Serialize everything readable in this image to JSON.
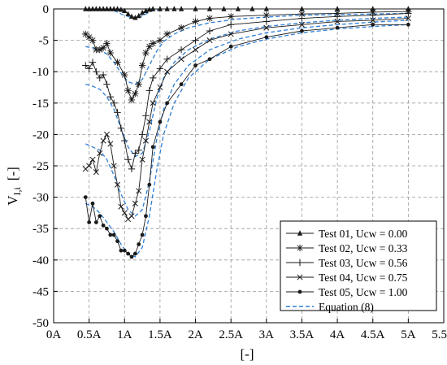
{
  "chart_data": {
    "type": "line",
    "xlabel": "[-]",
    "ylabel": "V",
    "ylabel_sub": "I,i",
    "ylabel_suffix": "[-]",
    "xlim": [
      0,
      5.5
    ],
    "ylim": [
      -50,
      0
    ],
    "x_ticks": [
      0,
      0.5,
      1,
      1.5,
      2,
      2.5,
      3,
      3.5,
      4,
      4.5,
      5,
      5.5
    ],
    "x_tick_labels": [
      "0A",
      "0.5A",
      "1A",
      "1.5A",
      "2A",
      "2.5A",
      "3A",
      "3.5A",
      "4A",
      "4.5A",
      "5A",
      "5.5A"
    ],
    "y_ticks": [
      0,
      -5,
      -10,
      -15,
      -20,
      -25,
      -30,
      -35,
      -40,
      -45,
      -50
    ],
    "y_tick_labels": [
      "0",
      "-5",
      "-10",
      "-15",
      "-20",
      "-25",
      "-30",
      "-35",
      "-40",
      "-45",
      "-50"
    ],
    "grid": true,
    "legend_position": "bottom-right",
    "series": [
      {
        "name": "Test 01, Ucw = 0.00",
        "marker": "triangle",
        "x": [
          0.45,
          0.5,
          0.55,
          0.6,
          0.65,
          0.7,
          0.75,
          0.8,
          0.85,
          0.9,
          0.95,
          1.0,
          1.05,
          1.1,
          1.15,
          1.2,
          1.25,
          1.3,
          1.35,
          1.4,
          1.5,
          1.6,
          1.7,
          1.8,
          2.0,
          2.2,
          2.4,
          2.6,
          2.8,
          3.0,
          3.5,
          4.0,
          4.5,
          5.0
        ],
        "y": [
          0,
          0,
          0,
          0,
          0,
          0,
          0,
          0,
          0,
          0,
          -0.1,
          -0.3,
          -0.8,
          -1.2,
          -1.4,
          -1.1,
          -0.6,
          -0.3,
          -0.1,
          0,
          0,
          0,
          0,
          0,
          0,
          0,
          0,
          0,
          0,
          0,
          0,
          0,
          0,
          0
        ]
      },
      {
        "name": "Test 02, Ucw = 0.33",
        "marker": "star",
        "x": [
          0.45,
          0.5,
          0.55,
          0.6,
          0.65,
          0.7,
          0.75,
          0.8,
          0.9,
          1.0,
          1.05,
          1.1,
          1.15,
          1.2,
          1.25,
          1.3,
          1.35,
          1.4,
          1.5,
          1.6,
          1.8,
          2.0,
          2.2,
          2.5,
          3.0,
          3.5,
          4.0,
          4.5,
          5.0
        ],
        "y": [
          -4,
          -4.5,
          -5,
          -6.5,
          -6.5,
          -6.2,
          -5.5,
          -7,
          -8.5,
          -10.5,
          -13,
          -14.5,
          -13.5,
          -12,
          -9,
          -7,
          -6,
          -5.5,
          -5,
          -4,
          -3,
          -2,
          -1.5,
          -1.2,
          -1.0,
          -0.8,
          -0.7,
          -0.5,
          -0.4
        ]
      },
      {
        "name": "Test 03, Ucw = 0.56",
        "marker": "plus",
        "x": [
          0.45,
          0.5,
          0.55,
          0.6,
          0.65,
          0.7,
          0.75,
          0.8,
          0.85,
          0.9,
          0.95,
          1.0,
          1.05,
          1.1,
          1.15,
          1.2,
          1.25,
          1.3,
          1.35,
          1.4,
          1.5,
          1.6,
          1.8,
          2.0,
          2.2,
          2.5,
          3.0,
          3.5,
          4.0,
          4.5,
          5.0
        ],
        "y": [
          -9,
          -9.5,
          -8.5,
          -10,
          -11,
          -10.5,
          -12,
          -14,
          -15,
          -16.5,
          -19,
          -21,
          -24,
          -25.5,
          -23,
          -22.5,
          -20,
          -17,
          -13,
          -11,
          -9.5,
          -8,
          -6.5,
          -5,
          -3.5,
          -2.5,
          -2,
          -1.5,
          -1.2,
          -1.0,
          -0.7
        ]
      },
      {
        "name": "Test 04, Ucw = 0.75",
        "marker": "x",
        "x": [
          0.45,
          0.5,
          0.55,
          0.6,
          0.65,
          0.7,
          0.75,
          0.8,
          0.85,
          0.9,
          0.95,
          1.0,
          1.05,
          1.1,
          1.15,
          1.2,
          1.25,
          1.3,
          1.35,
          1.4,
          1.5,
          1.6,
          1.8,
          2.0,
          2.2,
          2.5,
          3.0,
          3.5,
          4.0,
          4.5,
          5.0
        ],
        "y": [
          -25.5,
          -25,
          -24,
          -26,
          -23,
          -21,
          -20,
          -21.5,
          -25,
          -28,
          -31.5,
          -32.5,
          -33.5,
          -33,
          -31,
          -29,
          -24,
          -21,
          -18,
          -15,
          -12.5,
          -10,
          -8,
          -6.5,
          -5,
          -4,
          -3,
          -2.5,
          -2,
          -1.8,
          -1.5
        ]
      },
      {
        "name": "Test 05, Ucw = 1.00",
        "marker": "dot",
        "x": [
          0.45,
          0.5,
          0.55,
          0.6,
          0.65,
          0.7,
          0.75,
          0.8,
          0.85,
          0.9,
          0.95,
          1.0,
          1.05,
          1.1,
          1.15,
          1.2,
          1.25,
          1.3,
          1.35,
          1.4,
          1.5,
          1.6,
          1.8,
          2.0,
          2.2,
          2.5,
          3.0,
          3.5,
          4.0,
          4.5,
          5.0
        ],
        "y": [
          -30,
          -34,
          -31,
          -34,
          -33,
          -34.5,
          -35,
          -36,
          -36,
          -37,
          -38.5,
          -38.5,
          -39,
          -39.5,
          -39,
          -37.5,
          -36,
          -33,
          -28,
          -22,
          -18,
          -15,
          -12,
          -9,
          -8,
          -6,
          -4.5,
          -3.5,
          -3,
          -2.5,
          -2.5
        ]
      }
    ],
    "equation": {
      "name": "Equation (8)",
      "style": "dashed",
      "color": "#2F7FD4",
      "curves": [
        {
          "x": [
            0.85,
            0.9,
            0.95,
            1.0,
            1.05,
            1.1,
            1.15,
            1.2,
            1.25,
            1.3,
            1.35,
            1.4,
            1.5
          ],
          "y": [
            -0.3,
            -0.5,
            -0.8,
            -1.0,
            -1.2,
            -1.35,
            -1.4,
            -1.3,
            -1.1,
            -0.8,
            -0.5,
            -0.3,
            -0.1
          ]
        },
        {
          "x": [
            0.45,
            0.55,
            0.65,
            0.75,
            0.85,
            0.95,
            1.05,
            1.15,
            1.25,
            1.35,
            1.45,
            1.55,
            1.7,
            1.9,
            2.2,
            2.6,
            3.0,
            3.5,
            4.0,
            4.5,
            5.0
          ],
          "y": [
            -6,
            -6.2,
            -6.5,
            -7.2,
            -8.5,
            -10.2,
            -11.6,
            -12,
            -11.2,
            -9,
            -6.8,
            -5.2,
            -4,
            -3,
            -2.2,
            -1.6,
            -1.3,
            -1.0,
            -0.9,
            -0.8,
            -0.7
          ]
        },
        {
          "x": [
            0.45,
            0.55,
            0.65,
            0.75,
            0.85,
            0.95,
            1.05,
            1.15,
            1.25,
            1.35,
            1.45,
            1.55,
            1.7,
            1.9,
            2.2,
            2.6,
            3.0,
            3.5,
            4.0,
            4.5,
            5.0
          ],
          "y": [
            -12,
            -12.3,
            -12.8,
            -14,
            -16,
            -19,
            -22,
            -23.5,
            -23,
            -19.5,
            -14.5,
            -11,
            -8.5,
            -6.5,
            -4.8,
            -3.5,
            -2.8,
            -2.2,
            -1.8,
            -1.5,
            -1.3
          ]
        },
        {
          "x": [
            0.45,
            0.55,
            0.65,
            0.75,
            0.85,
            0.95,
            1.05,
            1.15,
            1.25,
            1.35,
            1.45,
            1.55,
            1.7,
            1.9,
            2.2,
            2.6,
            3.0,
            3.5,
            4.0,
            4.5,
            5.0
          ],
          "y": [
            -21.5,
            -22,
            -22.5,
            -24,
            -26.5,
            -29.5,
            -32,
            -33,
            -32,
            -27.5,
            -21,
            -16,
            -12,
            -9,
            -6.5,
            -4.8,
            -3.8,
            -3,
            -2.5,
            -2.1,
            -1.8
          ]
        },
        {
          "x": [
            0.45,
            0.55,
            0.65,
            0.75,
            0.85,
            0.95,
            1.05,
            1.15,
            1.25,
            1.35,
            1.45,
            1.55,
            1.7,
            1.9,
            2.2,
            2.6,
            3.0,
            3.5,
            4.0,
            4.5,
            5.0
          ],
          "y": [
            -31,
            -31.5,
            -32.5,
            -34,
            -35.5,
            -37.5,
            -39,
            -39.5,
            -38,
            -33,
            -26,
            -20,
            -15,
            -11,
            -8,
            -6,
            -4.8,
            -3.8,
            -3.2,
            -2.8,
            -2.5
          ]
        }
      ]
    }
  },
  "colors": {
    "data_line": "#1a1a1a",
    "equation": "#2F7FD4",
    "grid": "#9a9a9a",
    "axes": "#000000"
  }
}
